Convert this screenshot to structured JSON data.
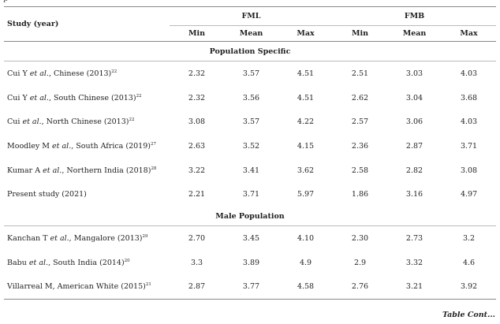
{
  "table": {
    "header": {
      "study": "Study (year)",
      "group1": "FML",
      "group2": "FMB",
      "sub": [
        "Min",
        "Mean",
        "Max",
        "Min",
        "Mean",
        "Max"
      ]
    },
    "sections": [
      {
        "title": "Population Specific",
        "rows": [
          {
            "parts": [
              "Cui Y ",
              "et al.",
              ", Chinese (2013)"
            ],
            "ref": "22",
            "values": [
              "2.32",
              "3.57",
              "4.51",
              "2.51",
              "3.03",
              "4.03"
            ]
          },
          {
            "parts": [
              "Cui Y ",
              "et al.",
              ", South Chinese  (2013)"
            ],
            "ref": "22",
            "values": [
              "2.32",
              "3.56",
              "4.51",
              "2.62",
              "3.04",
              "3.68"
            ]
          },
          {
            "parts": [
              "Cui ",
              "et al.",
              ", North Chinese  (2013)"
            ],
            "ref": "22",
            "values": [
              "3.08",
              "3.57",
              "4.22",
              "2.57",
              "3.06",
              "4.03"
            ]
          },
          {
            "parts": [
              "Moodley M ",
              "et al.",
              ", South Africa (2019)"
            ],
            "ref": "27",
            "values": [
              "2.63",
              "3.52",
              "4.15",
              "2.36",
              "2.87",
              "3.71"
            ]
          },
          {
            "parts": [
              "Kumar A ",
              "et al.",
              ", Northern India (2018)"
            ],
            "ref": "28",
            "values": [
              "3.22",
              "3.41",
              "3.62",
              "2.58",
              "2.82",
              "3.08"
            ]
          },
          {
            "parts": [
              "Present study (2021)",
              "",
              ""
            ],
            "ref": "",
            "values": [
              "2.21",
              "3.71",
              "5.97",
              "1.86",
              "3.16",
              "4.97"
            ]
          }
        ]
      },
      {
        "title": "Male Population",
        "rows": [
          {
            "parts": [
              "Kanchan T ",
              "et al.",
              ", Mangalore (2013)"
            ],
            "ref": "29",
            "values": [
              "2.70",
              "3.45",
              "4.10",
              "2.30",
              "2.73",
              "3.2"
            ]
          },
          {
            "parts": [
              "Babu ",
              "et al.",
              ", South India (2014)"
            ],
            "ref": "20",
            "values": [
              "3.3",
              "3.89",
              "4.9",
              "2.9",
              "3.32",
              "4.6"
            ]
          },
          {
            "parts": [
              "Villarreal M, American White (2015)",
              "",
              ""
            ],
            "ref": "21",
            "values": [
              "2.87",
              "3.77",
              "4.58",
              "2.76",
              "3.21",
              "3.92"
            ]
          }
        ]
      }
    ],
    "footer": "Table Cont..."
  }
}
